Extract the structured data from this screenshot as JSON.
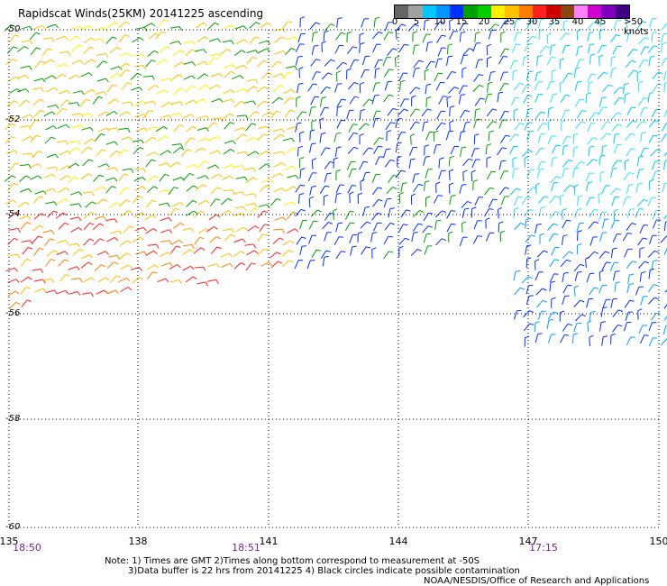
{
  "title": "Rapidscat Winds(25KM) 20141225 ascending",
  "y_axis_labels": [
    "-50",
    "-52",
    "-54",
    "-56",
    "-58",
    "-60"
  ],
  "x_axis_labels": [
    "135",
    "138",
    "141",
    "144",
    "147",
    "150"
  ],
  "time_labels": [
    "18:50",
    "18:51",
    "17:15"
  ],
  "colorbar": {
    "labels": [
      "0",
      "5",
      "10",
      "15",
      "20",
      "25",
      "30",
      "35",
      "40",
      "45",
      ">50 knots"
    ],
    "colors": [
      "#666666",
      "#a0a0a0",
      "#00c8ff",
      "#0096ff",
      "#0030ff",
      "#00a000",
      "#00d000",
      "#ffee00",
      "#ffc000",
      "#ff8000",
      "#ff2020",
      "#d00000",
      "#8b4513",
      "#ff80ff",
      "#d000d0",
      "#8000c0",
      "#400080"
    ]
  },
  "notes": [
    "Note: 1) Times are GMT 2)Times along bottom correspond to measurement at -50S",
    "3)Data buffer is 22 hrs from 20141225 4) Black circles indicate possible contamination",
    "NOAA/NESDIS/Office of Research and Applications"
  ]
}
